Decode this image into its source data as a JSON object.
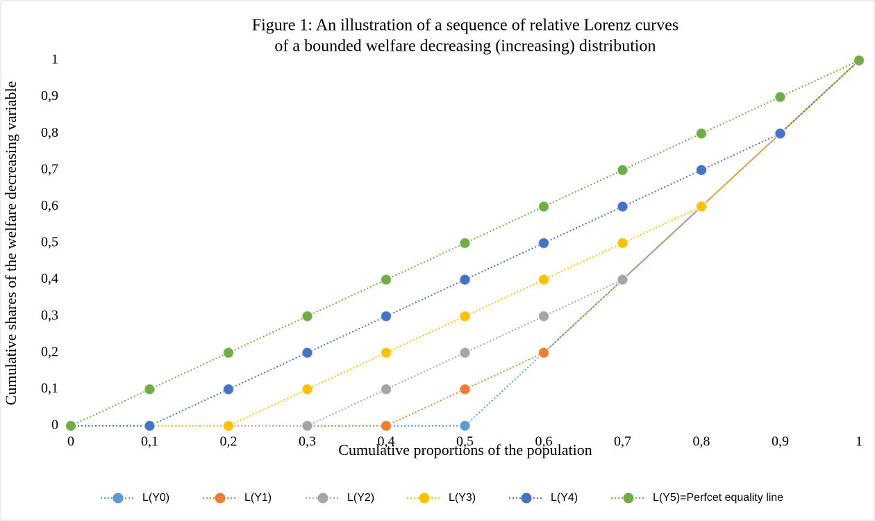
{
  "chart_data": {
    "type": "line",
    "title": [
      "Figure 1: An illustration of a sequence of relative Lorenz curves",
      "of a bounded welfare decreasing (increasing) distribution"
    ],
    "x_label": "Cumulative proportions of the population",
    "y_label": "Cumulative shares of the welfare decreasing variable",
    "x": [
      0,
      0.1,
      0.2,
      0.3,
      0.4,
      0.5,
      0.6,
      0.7,
      0.8,
      0.9,
      1
    ],
    "series": [
      {
        "name": "L(Y0)",
        "color": "#5b9bd5",
        "values": [
          0,
          0,
          0,
          0,
          0,
          0,
          0.2,
          0.4,
          0.6,
          0.8,
          1
        ]
      },
      {
        "name": "L(Y1)",
        "color": "#ed7d31",
        "values": [
          0,
          0,
          0,
          0,
          0,
          0.1,
          0.2,
          0.4,
          0.6,
          0.8,
          1
        ]
      },
      {
        "name": "L(Y2)",
        "color": "#a5a5a5",
        "values": [
          0,
          0,
          0,
          0,
          0.1,
          0.2,
          0.3,
          0.4,
          0.6,
          0.8,
          1
        ]
      },
      {
        "name": "L(Y3)",
        "color": "#ffc000",
        "values": [
          0,
          0,
          0,
          0.1,
          0.2,
          0.3,
          0.4,
          0.5,
          0.6,
          0.8,
          1
        ]
      },
      {
        "name": "L(Y4)",
        "color": "#4472c4",
        "values": [
          0,
          0,
          0.1,
          0.2,
          0.3,
          0.4,
          0.5,
          0.6,
          0.7,
          0.8,
          1
        ]
      },
      {
        "name": "L(Y5)=Perfcet equality line",
        "color": "#70ad47",
        "values": [
          0,
          0.1,
          0.2,
          0.3,
          0.4,
          0.5,
          0.6,
          0.7,
          0.8,
          0.9,
          1
        ]
      }
    ],
    "xlim": [
      0,
      1
    ],
    "xticks": [
      0,
      {
        "value": 0.1,
        "label": "0,1"
      },
      {
        "value": 0.2,
        "label": "0,2"
      },
      {
        "value": 0.3,
        "label": "0,3"
      },
      {
        "value": 0.4,
        "label": "0,4"
      },
      {
        "value": 0.5,
        "label": "0,5"
      },
      {
        "value": 0.6,
        "label": "0,6"
      },
      {
        "value": 0.7,
        "label": "0,7"
      },
      {
        "value": 0.8,
        "label": "0,8"
      },
      {
        "value": 0.9,
        "label": "0,9"
      },
      1
    ],
    "ylim": [
      0,
      1
    ],
    "yticks": [
      0,
      {
        "value": 0.1,
        "label": "0,1"
      },
      {
        "value": 0.2,
        "label": "0,2"
      },
      {
        "value": 0.3,
        "label": "0,3"
      },
      {
        "value": 0.4,
        "label": "0,4"
      },
      {
        "value": 0.5,
        "label": "0,5"
      },
      {
        "value": 0.6,
        "label": "0,6"
      },
      {
        "value": 0.7,
        "label": "0,7"
      },
      {
        "value": 0.8,
        "label": "0,8"
      },
      {
        "value": 0.9,
        "label": "0,9"
      },
      1
    ],
    "grid": false,
    "legend": "bottom"
  }
}
